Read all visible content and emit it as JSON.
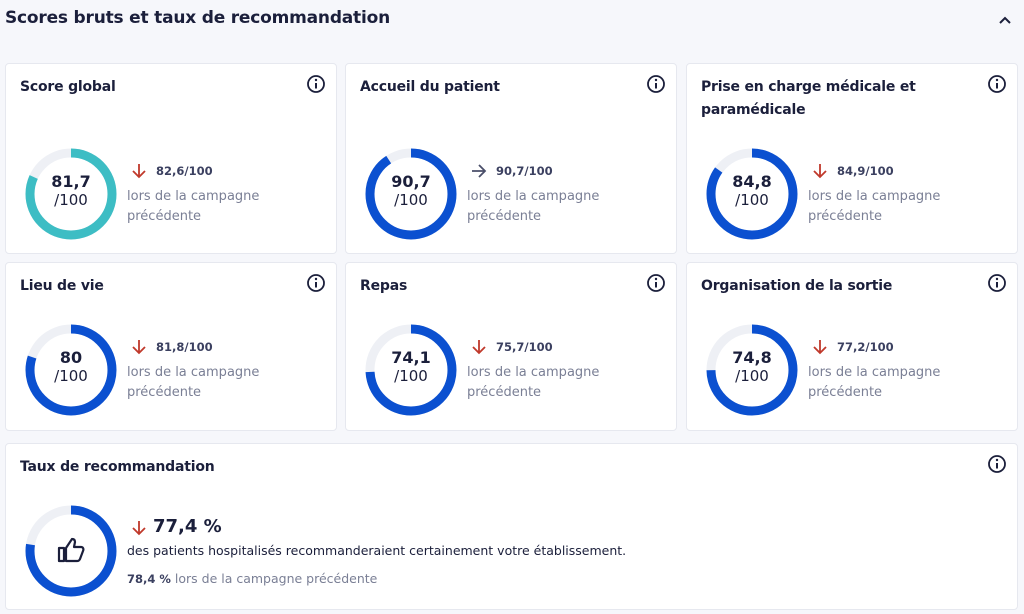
{
  "header": {
    "title": "Scores bruts et taux de recommandation"
  },
  "cards": [
    {
      "title": "Score global",
      "score": {
        "value": 81.7,
        "label": "81,7"
      },
      "out_of": {
        "value": 100,
        "label": "/100"
      },
      "previous": "82,6/100",
      "previous_note": "lors de la campagne précédente",
      "trend": "down",
      "color": "#3dbdc4"
    },
    {
      "title": "Accueil du patient",
      "score": {
        "value": 90.7,
        "label": "90,7"
      },
      "out_of": {
        "value": 100,
        "label": "/100"
      },
      "previous": "90,7/100",
      "previous_note": "lors de la campagne précédente",
      "trend": "flat",
      "color": "#0b50d0"
    },
    {
      "title": "Prise en charge médicale et paramédicale",
      "score": {
        "value": 84.8,
        "label": "84,8"
      },
      "out_of": {
        "value": 100,
        "label": "/100"
      },
      "previous": "84,9/100",
      "previous_note": "lors de la campagne précédente",
      "trend": "down",
      "color": "#0b50d0"
    },
    {
      "title": "Lieu de vie",
      "score": {
        "value": 80,
        "label": "80"
      },
      "out_of": {
        "value": 100,
        "label": "/100"
      },
      "previous": "81,8/100",
      "previous_note": "lors de la campagne précédente",
      "trend": "down",
      "color": "#0b50d0"
    },
    {
      "title": "Repas",
      "score": {
        "value": 74.1,
        "label": "74,1"
      },
      "out_of": {
        "value": 100,
        "label": "/100"
      },
      "previous": "75,7/100",
      "previous_note": "lors de la campagne précédente",
      "trend": "down",
      "color": "#0b50d0"
    },
    {
      "title": "Organisation de la sortie",
      "score": {
        "value": 74.8,
        "label": "74,8"
      },
      "out_of": {
        "value": 100,
        "label": "/100"
      },
      "previous": "77,2/100",
      "previous_note": "lors de la campagne précédente",
      "trend": "down",
      "color": "#0b50d0"
    }
  ],
  "recommendation": {
    "title": "Taux de recommandation",
    "rate": {
      "value": 77.4,
      "label": "77,4 %"
    },
    "description": "des patients hospitalisés recommanderaient certainement votre établissement.",
    "previous": "78,4 %",
    "previous_note": "lors de la campagne précédente",
    "trend": "down",
    "color": "#0b50d0"
  }
}
